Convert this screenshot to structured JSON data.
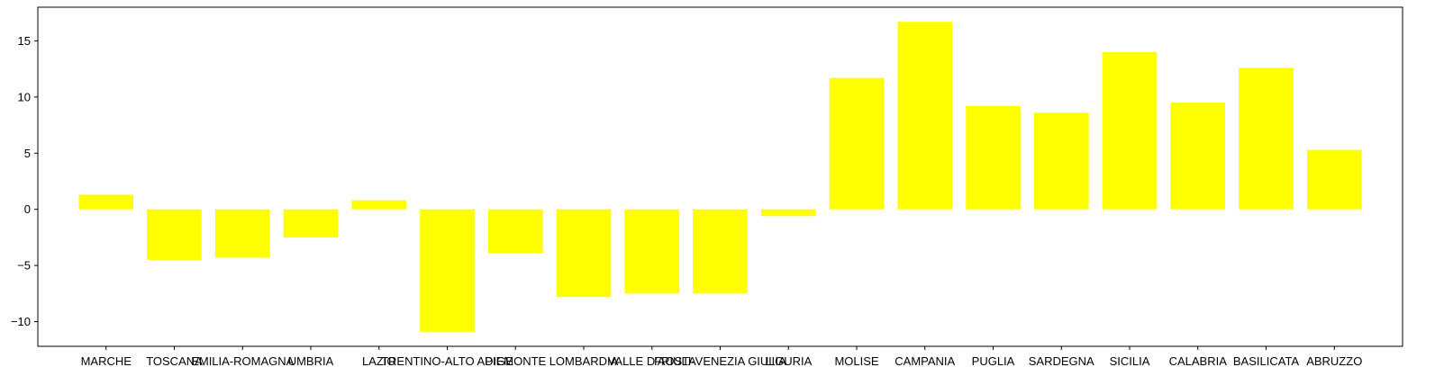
{
  "chart_data": {
    "type": "bar",
    "title": "",
    "xlabel": "",
    "ylabel": "",
    "categories": [
      "MARCHE",
      "TOSCANA",
      "EMILIA-ROMAGNA",
      "UMBRIA",
      "LAZIO",
      "TRENTINO-ALTO ADIGE",
      "PIEMONTE",
      "LOMBARDIA",
      "VALLE D'AOSTA",
      "FRIULI-VENEZIA GIULIA",
      "LIGURIA",
      "MOLISE",
      "CAMPANIA",
      "PUGLIA",
      "SARDEGNA",
      "SICILIA",
      "CALABRIA",
      "BASILICATA",
      "ABRUZZO"
    ],
    "values": [
      1.3,
      -4.5,
      -4.3,
      -2.5,
      0.8,
      -10.9,
      -3.9,
      -7.8,
      -7.5,
      -7.5,
      -0.6,
      11.7,
      16.7,
      9.2,
      8.6,
      14.0,
      9.5,
      12.6,
      5.3
    ],
    "ylim": [
      -12.2,
      18.0
    ],
    "yticks": [
      -10,
      -5,
      0,
      5,
      10,
      15
    ],
    "ytick_labels": [
      "−10",
      "−5",
      "0",
      "5",
      "10",
      "15"
    ],
    "bar_color": "#ffff00",
    "grid": false,
    "legend": "none"
  }
}
